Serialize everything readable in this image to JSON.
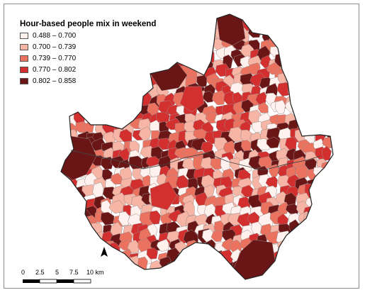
{
  "map": {
    "title": "Hour-based people mix in weekend",
    "legend": [
      {
        "label": "0.488 – 0.700",
        "color": "#fff2ee"
      },
      {
        "label": "0.700 – 0.739",
        "color": "#f6b5a5"
      },
      {
        "label": "0.739 – 0.770",
        "color": "#ec7260"
      },
      {
        "label": "0.770 – 0.802",
        "color": "#d42f2f"
      },
      {
        "label": "0.802 – 0.858",
        "color": "#6b1616"
      }
    ],
    "north_arrow": "A",
    "scale_bar": {
      "ticks": [
        "0",
        "2.5",
        "5",
        "7.5",
        "10 km"
      ]
    },
    "icons": {
      "north": "north-arrow-icon"
    }
  }
}
